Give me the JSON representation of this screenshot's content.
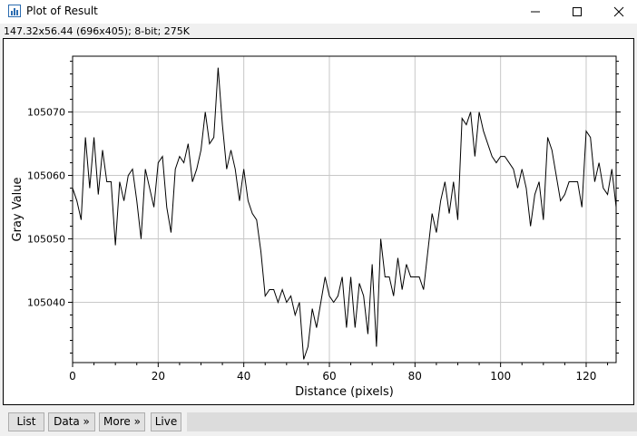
{
  "window": {
    "title": "Plot of Result",
    "icon": "plot-window-icon",
    "controls": [
      "minimize-icon",
      "maximize-icon",
      "close-icon"
    ]
  },
  "info_line": "147.32x56.44  (696x405); 8-bit; 275K",
  "buttons": {
    "list": "List",
    "data": "Data »",
    "more": "More »",
    "live": "Live"
  },
  "colors": {
    "grid": "#c8c8c8",
    "line": "#000000",
    "plot_background": "#ffffff",
    "window_background": "#f0f0f0"
  },
  "chart_data": {
    "type": "line",
    "title": "",
    "xlabel": "Distance (pixels)",
    "ylabel": "Gray Value",
    "xlim": [
      0,
      127
    ],
    "ylim": [
      105030.5,
      105078.8
    ],
    "xticks": [
      0,
      20,
      40,
      60,
      80,
      100,
      120
    ],
    "yticks": [
      105040,
      105050,
      105060,
      105070
    ],
    "grid": true,
    "legend": "none",
    "series": [
      {
        "x": [
          0,
          1,
          2,
          3,
          4,
          5,
          6,
          7,
          8,
          9,
          10,
          11,
          12,
          13,
          14,
          15,
          16,
          17,
          18,
          19,
          20,
          21,
          22,
          23,
          24,
          25,
          26,
          27,
          28,
          29,
          30,
          31,
          32,
          33,
          34,
          35,
          36,
          37,
          38,
          39,
          40,
          41,
          42,
          43,
          44,
          45,
          46,
          47,
          48,
          49,
          50,
          51,
          52,
          53,
          54,
          55,
          56,
          57,
          58,
          59,
          60,
          61,
          62,
          63,
          64,
          65,
          66,
          67,
          68,
          69,
          70,
          71,
          72,
          73,
          74,
          75,
          76,
          77,
          78,
          79,
          80,
          81,
          82,
          83,
          84,
          85,
          86,
          87,
          88,
          89,
          90,
          91,
          92,
          93,
          94,
          95,
          96,
          97,
          98,
          99,
          100,
          101,
          102,
          103,
          104,
          105,
          106,
          107,
          108,
          109,
          110,
          111,
          112,
          113,
          114,
          115,
          116,
          117,
          118,
          119,
          120,
          121,
          122,
          123,
          124,
          125,
          126,
          127
        ],
        "y": [
          105058,
          105056,
          105053,
          105066,
          105058,
          105066,
          105057,
          105064,
          105059,
          105059,
          105049,
          105059,
          105056,
          105060,
          105061,
          105056,
          105050,
          105061,
          105058,
          105055,
          105062,
          105063,
          105055,
          105051,
          105061,
          105063,
          105062,
          105065,
          105059,
          105061,
          105064,
          105070,
          105065,
          105066,
          105077,
          105068,
          105061,
          105064,
          105061,
          105056,
          105061,
          105056,
          105054,
          105053,
          105048,
          105041,
          105042,
          105042,
          105040,
          105042,
          105040,
          105041,
          105038,
          105040,
          105031,
          105033,
          105039,
          105036,
          105040,
          105044,
          105041,
          105040,
          105041,
          105044,
          105036,
          105044,
          105036,
          105043,
          105041,
          105035,
          105046,
          105033,
          105050,
          105044,
          105044,
          105041,
          105047,
          105042,
          105046,
          105044,
          105044,
          105044,
          105042,
          105048,
          105054,
          105051,
          105056,
          105059,
          105054,
          105059,
          105053,
          105069,
          105068,
          105070,
          105063,
          105070,
          105067,
          105065,
          105063,
          105062,
          105063,
          105063,
          105062,
          105061,
          105058,
          105061,
          105058,
          105052,
          105057,
          105059,
          105053,
          105066,
          105064,
          105060,
          105056,
          105057,
          105059,
          105059,
          105059,
          105055,
          105067,
          105066,
          105059,
          105062,
          105058,
          105057,
          105061,
          105055
        ]
      }
    ]
  }
}
